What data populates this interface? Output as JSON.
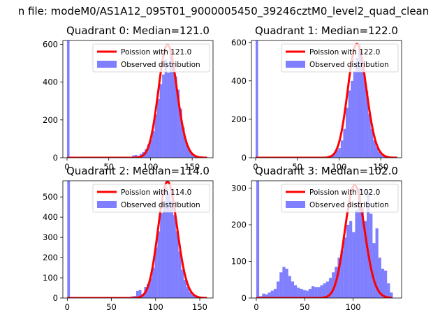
{
  "figure": {
    "suptitle": "n file: modeM0/AS1A12_095T01_9000005450_39246cztM0_level2_quad_clean",
    "colors": {
      "hist": "#0000ff",
      "hist_opacity": 0.5,
      "fit": "#ff0000",
      "spike": "#0000ff"
    }
  },
  "chart_data": [
    {
      "type": "bar",
      "title": "Quadrant 0: Median=121.0",
      "xlim": [
        -5,
        175
      ],
      "ylim": [
        0,
        620
      ],
      "xticks": [
        0,
        50,
        100,
        150
      ],
      "yticks": [
        0,
        200,
        400,
        600
      ],
      "legend_position": "upper right",
      "series": [
        {
          "name": "Poission with 121.0",
          "kind": "poisson",
          "mu": 121.0,
          "x_range": [
            0,
            168
          ],
          "peak": 598
        },
        {
          "name": "Observed distribution",
          "kind": "histogram",
          "bin_width": 3,
          "bins": [
            {
              "x": 0,
              "y": 620
            },
            {
              "x": 75,
              "y": 5
            },
            {
              "x": 78,
              "y": 12
            },
            {
              "x": 81,
              "y": 15
            },
            {
              "x": 84,
              "y": 10
            },
            {
              "x": 87,
              "y": 20
            },
            {
              "x": 90,
              "y": 30
            },
            {
              "x": 93,
              "y": 45
            },
            {
              "x": 96,
              "y": 70
            },
            {
              "x": 99,
              "y": 95
            },
            {
              "x": 102,
              "y": 140
            },
            {
              "x": 105,
              "y": 230
            },
            {
              "x": 108,
              "y": 310
            },
            {
              "x": 111,
              "y": 390
            },
            {
              "x": 114,
              "y": 440
            },
            {
              "x": 117,
              "y": 520
            },
            {
              "x": 120,
              "y": 450
            },
            {
              "x": 123,
              "y": 560
            },
            {
              "x": 126,
              "y": 500
            },
            {
              "x": 129,
              "y": 430
            },
            {
              "x": 132,
              "y": 360
            },
            {
              "x": 135,
              "y": 260
            },
            {
              "x": 138,
              "y": 160
            },
            {
              "x": 141,
              "y": 90
            },
            {
              "x": 144,
              "y": 55
            },
            {
              "x": 147,
              "y": 30
            },
            {
              "x": 150,
              "y": 18
            },
            {
              "x": 153,
              "y": 10
            },
            {
              "x": 156,
              "y": 5
            }
          ]
        }
      ]
    },
    {
      "type": "bar",
      "title": "Quadrant 1: Median=122.0",
      "xlim": [
        -5,
        175
      ],
      "ylim": [
        0,
        610
      ],
      "xticks": [
        0,
        50,
        100,
        150
      ],
      "yticks": [
        0,
        200,
        400,
        600
      ],
      "legend_position": "upper right",
      "series": [
        {
          "name": "Poission with 122.0",
          "kind": "poisson",
          "mu": 122.0,
          "x_range": [
            0,
            170
          ],
          "peak": 592
        },
        {
          "name": "Observed distribution",
          "kind": "histogram",
          "bin_width": 3,
          "bins": [
            {
              "x": 0,
              "y": 610
            },
            {
              "x": 84,
              "y": 6
            },
            {
              "x": 87,
              "y": 10
            },
            {
              "x": 90,
              "y": 15
            },
            {
              "x": 93,
              "y": 25
            },
            {
              "x": 96,
              "y": 40
            },
            {
              "x": 99,
              "y": 50
            },
            {
              "x": 102,
              "y": 90
            },
            {
              "x": 105,
              "y": 150
            },
            {
              "x": 108,
              "y": 260
            },
            {
              "x": 111,
              "y": 350
            },
            {
              "x": 114,
              "y": 400
            },
            {
              "x": 117,
              "y": 450
            },
            {
              "x": 120,
              "y": 520
            },
            {
              "x": 123,
              "y": 590
            },
            {
              "x": 126,
              "y": 520
            },
            {
              "x": 129,
              "y": 430
            },
            {
              "x": 132,
              "y": 350
            },
            {
              "x": 135,
              "y": 230
            },
            {
              "x": 138,
              "y": 150
            },
            {
              "x": 141,
              "y": 90
            },
            {
              "x": 144,
              "y": 55
            },
            {
              "x": 147,
              "y": 30
            },
            {
              "x": 150,
              "y": 15
            },
            {
              "x": 153,
              "y": 8
            }
          ]
        }
      ]
    },
    {
      "type": "bar",
      "title": "Quadrant 2: Median=114.0",
      "xlim": [
        -5,
        165
      ],
      "ylim": [
        0,
        580
      ],
      "xticks": [
        0,
        50,
        100,
        150
      ],
      "yticks": [
        0,
        100,
        200,
        300,
        400,
        500
      ],
      "legend_position": "upper right",
      "series": [
        {
          "name": "Poission with 114.0",
          "kind": "poisson",
          "mu": 114.0,
          "x_range": [
            0,
            158
          ],
          "peak": 575
        },
        {
          "name": "Observed distribution",
          "kind": "histogram",
          "bin_width": 3,
          "bins": [
            {
              "x": 0,
              "y": 580
            },
            {
              "x": 72,
              "y": 8
            },
            {
              "x": 75,
              "y": 10
            },
            {
              "x": 78,
              "y": 35
            },
            {
              "x": 81,
              "y": 40
            },
            {
              "x": 84,
              "y": 20
            },
            {
              "x": 87,
              "y": 55
            },
            {
              "x": 90,
              "y": 70
            },
            {
              "x": 93,
              "y": 100
            },
            {
              "x": 96,
              "y": 150
            },
            {
              "x": 99,
              "y": 250
            },
            {
              "x": 102,
              "y": 330
            },
            {
              "x": 105,
              "y": 420
            },
            {
              "x": 108,
              "y": 480
            },
            {
              "x": 111,
              "y": 550
            },
            {
              "x": 114,
              "y": 520
            },
            {
              "x": 117,
              "y": 480
            },
            {
              "x": 120,
              "y": 410
            },
            {
              "x": 123,
              "y": 330
            },
            {
              "x": 126,
              "y": 230
            },
            {
              "x": 129,
              "y": 140
            },
            {
              "x": 132,
              "y": 90
            },
            {
              "x": 135,
              "y": 55
            },
            {
              "x": 138,
              "y": 30
            },
            {
              "x": 141,
              "y": 15
            },
            {
              "x": 144,
              "y": 8
            }
          ]
        }
      ]
    },
    {
      "type": "bar",
      "title": "Quadrant 3: Median=102.0",
      "xlim": [
        -5,
        150
      ],
      "ylim": [
        0,
        320
      ],
      "xticks": [
        0,
        50,
        100
      ],
      "yticks": [
        0,
        100,
        200,
        300
      ],
      "legend_position": "upper right",
      "series": [
        {
          "name": "Poission with 102.0",
          "kind": "poisson",
          "mu": 102.0,
          "x_range": [
            0,
            140
          ],
          "peak": 308
        },
        {
          "name": "Observed distribution",
          "kind": "histogram",
          "bin_width": 3,
          "bins": [
            {
              "x": 0,
              "y": 320
            },
            {
              "x": 3,
              "y": 5
            },
            {
              "x": 6,
              "y": 12
            },
            {
              "x": 9,
              "y": 10
            },
            {
              "x": 12,
              "y": 15
            },
            {
              "x": 15,
              "y": 20
            },
            {
              "x": 18,
              "y": 25
            },
            {
              "x": 21,
              "y": 45
            },
            {
              "x": 24,
              "y": 70
            },
            {
              "x": 27,
              "y": 85
            },
            {
              "x": 30,
              "y": 80
            },
            {
              "x": 33,
              "y": 60
            },
            {
              "x": 36,
              "y": 45
            },
            {
              "x": 39,
              "y": 35
            },
            {
              "x": 42,
              "y": 28
            },
            {
              "x": 45,
              "y": 25
            },
            {
              "x": 48,
              "y": 22
            },
            {
              "x": 51,
              "y": 20
            },
            {
              "x": 54,
              "y": 25
            },
            {
              "x": 57,
              "y": 32
            },
            {
              "x": 60,
              "y": 30
            },
            {
              "x": 63,
              "y": 30
            },
            {
              "x": 66,
              "y": 35
            },
            {
              "x": 69,
              "y": 40
            },
            {
              "x": 72,
              "y": 45
            },
            {
              "x": 75,
              "y": 55
            },
            {
              "x": 78,
              "y": 70
            },
            {
              "x": 81,
              "y": 85
            },
            {
              "x": 84,
              "y": 110
            },
            {
              "x": 87,
              "y": 130
            },
            {
              "x": 90,
              "y": 165
            },
            {
              "x": 93,
              "y": 200
            },
            {
              "x": 96,
              "y": 210
            },
            {
              "x": 99,
              "y": 180
            },
            {
              "x": 102,
              "y": 240
            },
            {
              "x": 105,
              "y": 300
            },
            {
              "x": 108,
              "y": 250
            },
            {
              "x": 111,
              "y": 210
            },
            {
              "x": 114,
              "y": 290
            },
            {
              "x": 117,
              "y": 230
            },
            {
              "x": 120,
              "y": 150
            },
            {
              "x": 123,
              "y": 190
            },
            {
              "x": 126,
              "y": 110
            },
            {
              "x": 129,
              "y": 80
            },
            {
              "x": 132,
              "y": 75
            },
            {
              "x": 135,
              "y": 40
            },
            {
              "x": 138,
              "y": 15
            }
          ]
        }
      ]
    }
  ]
}
